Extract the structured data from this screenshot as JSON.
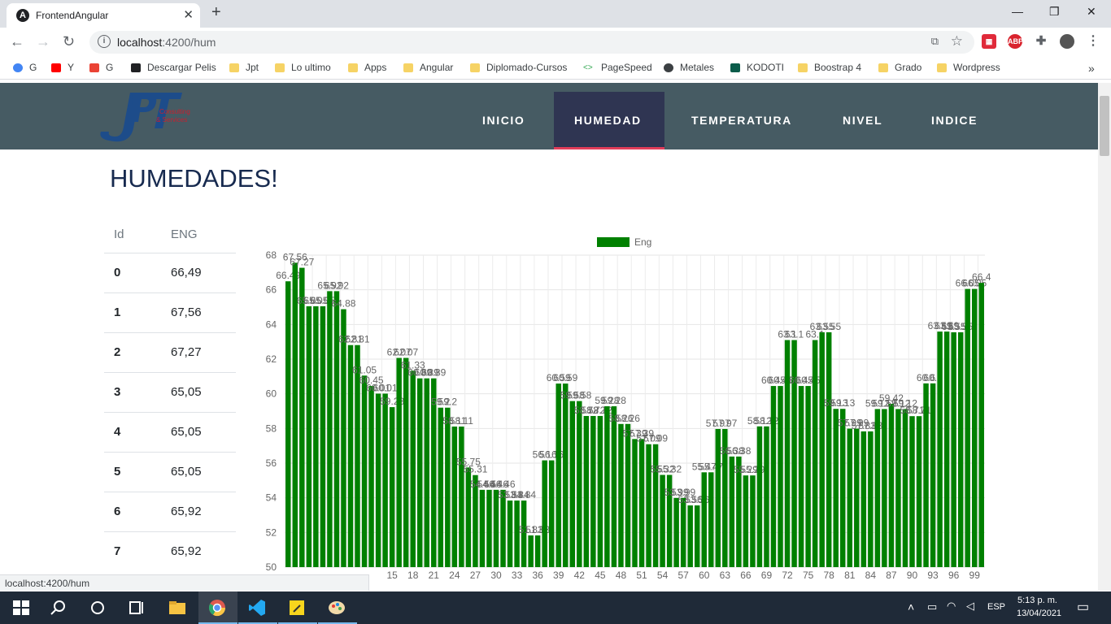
{
  "browser": {
    "tab_title": "FrontendAngular",
    "url_host": "localhost",
    "url_path": ":4200/hum",
    "status_url": "localhost:4200/hum",
    "bookmarks": [
      {
        "label": "G",
        "icon": "google-icon"
      },
      {
        "label": "Y",
        "icon": "youtube-icon"
      },
      {
        "label": "G",
        "icon": "gmail-icon"
      },
      {
        "label": "Descargar Pelis",
        "icon": "p-icon"
      },
      {
        "label": "Jpt",
        "icon": "folder-icon"
      },
      {
        "label": "Lo ultimo",
        "icon": "folder-icon"
      },
      {
        "label": "Apps",
        "icon": "folder-icon"
      },
      {
        "label": "Angular",
        "icon": "folder-icon"
      },
      {
        "label": "Diplomado-Cursos",
        "icon": "folder-icon"
      },
      {
        "label": "PageSpeed",
        "icon": "pagespeed-icon"
      },
      {
        "label": "Metales",
        "icon": "globe-icon"
      },
      {
        "label": "KODOTI",
        "icon": "k-icon"
      },
      {
        "label": "Boostrap 4",
        "icon": "folder-icon"
      },
      {
        "label": "Grado",
        "icon": "folder-icon"
      },
      {
        "label": "Wordpress",
        "icon": "folder-icon"
      }
    ]
  },
  "nav": {
    "logo_text": "JPT",
    "logo_sub1": "Consulting",
    "logo_sub2": "& Services",
    "items": [
      "INICIO",
      "HUMEDAD",
      "TEMPERATURA",
      "NIVEL",
      "INDICE"
    ],
    "active": "HUMEDAD"
  },
  "page": {
    "heading": "HUMEDADES!",
    "table": {
      "headers": [
        "Id",
        "ENG"
      ],
      "rows": [
        [
          "0",
          "66,49"
        ],
        [
          "1",
          "67,56"
        ],
        [
          "2",
          "67,27"
        ],
        [
          "3",
          "65,05"
        ],
        [
          "4",
          "65,05"
        ],
        [
          "5",
          "65,05"
        ],
        [
          "6",
          "65,92"
        ],
        [
          "7",
          "65,92"
        ]
      ]
    }
  },
  "chart_data": {
    "type": "bar",
    "legend": "Eng",
    "bar_color": "#008000",
    "ylim": [
      50,
      68
    ],
    "yticks": [
      50,
      52,
      54,
      56,
      58,
      60,
      62,
      64,
      66,
      68
    ],
    "xticks": [
      "15",
      "18",
      "21",
      "24",
      "27",
      "30",
      "33",
      "36",
      "39",
      "42",
      "45",
      "48",
      "51",
      "54",
      "57",
      "60",
      "63",
      "66",
      "69",
      "72",
      "75",
      "78",
      "81",
      "84",
      "87",
      "90",
      "93",
      "96",
      "99"
    ],
    "values": [
      66.49,
      67.56,
      67.27,
      65.05,
      65.05,
      65.05,
      65.92,
      65.92,
      64.88,
      62.81,
      62.81,
      61.05,
      60.45,
      60.01,
      60.01,
      59.23,
      62.07,
      62.07,
      61.33,
      60.89,
      60.89,
      60.89,
      59.2,
      59.2,
      58.11,
      58.11,
      55.75,
      55.31,
      54.46,
      54.46,
      54.46,
      54.46,
      53.84,
      53.84,
      53.84,
      51.83,
      51.83,
      56.16,
      56.16,
      60.59,
      60.59,
      59.58,
      59.58,
      58.72,
      58.72,
      58.72,
      59.28,
      59.28,
      58.26,
      58.26,
      57.39,
      57.39,
      57.09,
      57.09,
      55.32,
      55.32,
      53.99,
      53.99,
      53.56,
      53.56,
      55.47,
      55.47,
      57.97,
      57.97,
      56.38,
      56.38,
      55.29,
      55.29,
      58.12,
      58.12,
      60.45,
      60.45,
      63.1,
      63.1,
      60.45,
      60.45,
      63.1,
      63.55,
      63.55,
      59.13,
      59.13,
      57.99,
      57.99,
      57.83,
      57.83,
      59.12,
      59.12,
      59.42,
      59.12,
      59.12,
      58.71,
      58.71,
      60.6,
      60.6,
      63.59,
      63.59,
      63.55,
      63.55,
      66.05,
      66.05,
      66.4
    ]
  },
  "taskbar": {
    "language": "ESP",
    "time": "5:13 p. m.",
    "date": "13/04/2021"
  }
}
